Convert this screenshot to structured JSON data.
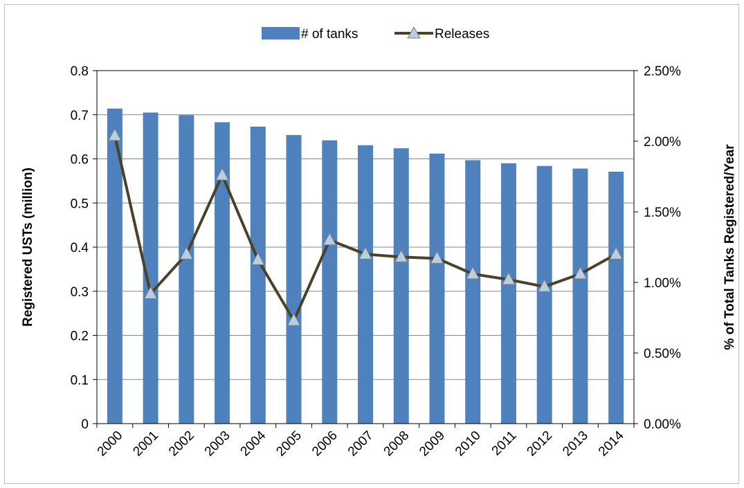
{
  "chart_data": {
    "type": "bar",
    "categories": [
      "2000",
      "2001",
      "2002",
      "2003",
      "2004",
      "2005",
      "2006",
      "2007",
      "2008",
      "2009",
      "2010",
      "2011",
      "2012",
      "2013",
      "2014"
    ],
    "series": [
      {
        "name": "# of tanks",
        "type": "bar",
        "axis": "left",
        "values": [
          0.714,
          0.705,
          0.699,
          0.683,
          0.673,
          0.654,
          0.642,
          0.631,
          0.624,
          0.612,
          0.597,
          0.59,
          0.584,
          0.578,
          0.571
        ]
      },
      {
        "name": "Releases",
        "type": "line",
        "axis": "right",
        "values": [
          0.0204,
          0.0092,
          0.012,
          0.0176,
          0.0116,
          0.0073,
          0.013,
          0.012,
          0.0118,
          0.0117,
          0.0106,
          0.0102,
          0.0097,
          0.0106,
          0.012
        ]
      }
    ],
    "ylabel": "Registered USTs (million)",
    "y2label": "% of Total Tanks Registered/Year",
    "ylim": [
      0,
      0.8
    ],
    "y2lim": [
      0,
      0.025
    ],
    "yticks": [
      "0",
      "0.1",
      "0.2",
      "0.3",
      "0.4",
      "0.5",
      "0.6",
      "0.7",
      "0.8"
    ],
    "y2ticks": [
      "0.00%",
      "0.50%",
      "1.00%",
      "1.50%",
      "2.00%",
      "2.50%"
    ],
    "grid": true,
    "legend_position": "top-center",
    "colors": {
      "bars": "#4f81bd",
      "line": "#4a4128",
      "marker_fill": "#b9cde5",
      "marker_stroke": "#7f7f7f",
      "grid": "#868686"
    }
  }
}
